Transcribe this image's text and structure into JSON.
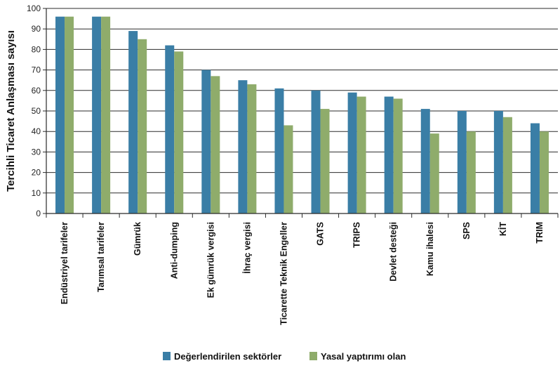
{
  "chart_data": {
    "type": "bar",
    "ylabel": "Tercihli Ticaret Anlaşması sayısı",
    "ylim": [
      0,
      100
    ],
    "yticks": [
      0,
      10,
      20,
      30,
      40,
      50,
      60,
      70,
      80,
      90,
      100
    ],
    "grid": "horizontal",
    "legend_position": "bottom",
    "categories": [
      "Endüstriyel tarifeler",
      "Tarımsal tarifeler",
      "Gümrük",
      "Anti-dumping",
      "Ek gümrük vergisi",
      "İhraç vergisi",
      "Ticarette Teknik Engeller",
      "GATS",
      "TRIPS",
      "Devlet desteği",
      "Kamu ihalesi",
      "SPS",
      "KİT",
      "TRIM"
    ],
    "series": [
      {
        "name": "Değerlendirilen sektörler",
        "color": "#3a7ea6",
        "values": [
          96,
          96,
          89,
          82,
          70,
          65,
          61,
          60,
          59,
          57,
          51,
          50,
          50,
          44
        ]
      },
      {
        "name": "Yasal yaptırımı olan",
        "color": "#8fac6b",
        "values": [
          96,
          96,
          85,
          79,
          67,
          63,
          43,
          51,
          57,
          56,
          39,
          40,
          47,
          40
        ]
      }
    ]
  }
}
